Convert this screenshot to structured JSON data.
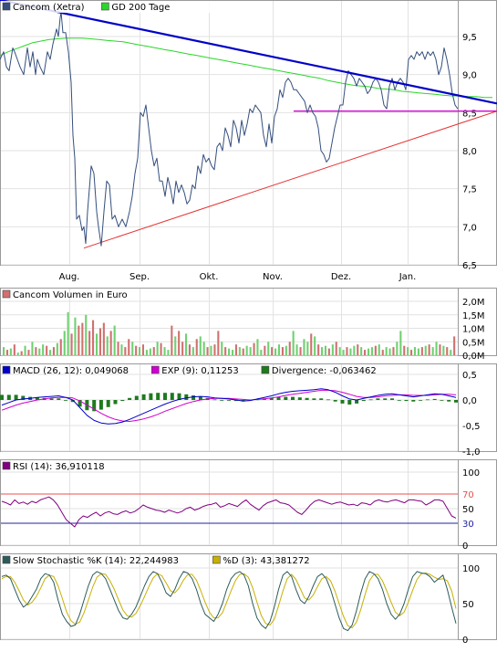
{
  "colors": {
    "price": "#344e7d",
    "gd200": "#2ad62a",
    "trend_down": "#0000c8",
    "trend_up": "#e83030",
    "support": "#d000d0",
    "vol_up": "#70d070",
    "vol_down": "#d07070",
    "macd": "#0000c8",
    "exp": "#d000d0",
    "divergence": "#1e7a1e",
    "rsi": "#800080",
    "rsi_70": "#e85050",
    "rsi_30": "#2020a0",
    "stoch_k": "#2d5b5b",
    "stoch_d": "#c8b000"
  },
  "months": [
    "Aug.",
    "Sep.",
    "Okt.",
    "Nov.",
    "Dez.",
    "Jan."
  ],
  "chart_data": [
    {
      "type": "line",
      "legend": [
        {
          "label": "Cancom (Xetra)",
          "color": "#344e7d"
        },
        {
          "label": "GD 200 Tage",
          "color": "#2ad62a"
        }
      ],
      "yticks": [
        "9,5",
        "9,0",
        "8,5",
        "8,0",
        "7,5",
        "7,0",
        "6,5"
      ],
      "ylim": [
        6.5,
        9.9
      ],
      "price_x": [
        0,
        4,
        7,
        10,
        14,
        16,
        19,
        22,
        26,
        30,
        33,
        36,
        39,
        41,
        44,
        48,
        52,
        55,
        58,
        62,
        64,
        66,
        67,
        69,
        72,
        75,
        78,
        80,
        82,
        84,
        87,
        90,
        92,
        94,
        96,
        98,
        100,
        103,
        106,
        108,
        111,
        114,
        117,
        120,
        123,
        126,
        130,
        134,
        138,
        142,
        145,
        148,
        151,
        154,
        157,
        160,
        163,
        166,
        169,
        172,
        175,
        178,
        181,
        184,
        187,
        190,
        193,
        196,
        199,
        202,
        205,
        208,
        211,
        214,
        217,
        220,
        223,
        226,
        229,
        232,
        235,
        238,
        241,
        244,
        247,
        250,
        253,
        256,
        259,
        262,
        265,
        268,
        271,
        274,
        277,
        280,
        283,
        286,
        289,
        292,
        295,
        298,
        301,
        304,
        307,
        310,
        313,
        316,
        319,
        322,
        325,
        328,
        331,
        334,
        337,
        340,
        343,
        346,
        349,
        352,
        355,
        358,
        361,
        364,
        367,
        370,
        373,
        376,
        379,
        382,
        385,
        388,
        391,
        394,
        397,
        400,
        403,
        406,
        409,
        412,
        415,
        418,
        421,
        424,
        427,
        430,
        433,
        436,
        439,
        442,
        445,
        448,
        451,
        454,
        457,
        460,
        463,
        466,
        469,
        472,
        475,
        478,
        481,
        484,
        487,
        490,
        493,
        496,
        499,
        502
      ],
      "price_y": [
        9.2,
        9.3,
        9.1,
        9.05,
        9.35,
        9.3,
        9.2,
        9.1,
        9.0,
        9.35,
        9.1,
        9.3,
        9.0,
        9.2,
        9.1,
        9.0,
        9.3,
        9.2,
        9.4,
        9.6,
        9.5,
        9.75,
        9.82,
        9.55,
        9.55,
        9.3,
        8.9,
        8.2,
        7.9,
        7.1,
        7.15,
        6.95,
        7.0,
        6.78,
        7.2,
        7.5,
        7.8,
        7.7,
        7.2,
        7.0,
        6.75,
        7.2,
        7.6,
        7.55,
        7.1,
        7.15,
        7.0,
        7.1,
        7.0,
        7.2,
        7.4,
        7.7,
        7.9,
        8.5,
        8.45,
        8.6,
        8.3,
        8.0,
        7.8,
        7.9,
        7.6,
        7.6,
        7.4,
        7.65,
        7.5,
        7.3,
        7.6,
        7.45,
        7.55,
        7.45,
        7.3,
        7.35,
        7.55,
        7.5,
        7.8,
        7.7,
        7.95,
        7.85,
        7.9,
        7.8,
        7.75,
        8.05,
        8.1,
        8.0,
        8.3,
        8.2,
        8.05,
        8.4,
        8.3,
        8.1,
        8.4,
        8.2,
        8.35,
        8.55,
        8.5,
        8.6,
        8.55,
        8.5,
        8.2,
        8.05,
        8.35,
        8.1,
        8.45,
        8.55,
        8.8,
        8.7,
        8.9,
        8.95,
        8.9,
        8.8,
        8.8,
        8.75,
        8.7,
        8.65,
        8.5,
        8.6,
        8.5,
        8.45,
        8.3,
        8.0,
        7.95,
        7.85,
        7.9,
        8.1,
        8.3,
        8.45,
        8.6,
        8.6,
        8.9,
        9.05,
        9.0,
        8.95,
        8.85,
        8.95,
        8.9,
        8.85,
        8.75,
        8.8,
        8.9,
        8.95,
        8.9,
        8.8,
        8.6,
        8.55,
        8.85,
        8.95,
        8.8,
        8.9,
        8.95,
        8.9,
        8.8,
        9.2,
        9.25,
        9.2,
        9.3,
        9.25,
        9.3,
        9.2,
        9.3,
        9.25,
        9.3,
        9.2,
        9.0,
        9.1,
        9.35,
        9.2,
        9.0,
        8.75,
        8.6,
        8.55
      ],
      "gd200_y": [
        9.25,
        9.3,
        9.34,
        9.38,
        9.42,
        9.44,
        9.46,
        9.47,
        9.48,
        9.48,
        9.48,
        9.47,
        9.46,
        9.45,
        9.44,
        9.43,
        9.41,
        9.39,
        9.37,
        9.35,
        9.33,
        9.31,
        9.29,
        9.27,
        9.25,
        9.23,
        9.21,
        9.19,
        9.17,
        9.15,
        9.13,
        9.11,
        9.09,
        9.07,
        9.05,
        9.03,
        9.01,
        8.99,
        8.97,
        8.95,
        8.92,
        8.9,
        8.88,
        8.86,
        8.85,
        8.84,
        8.82,
        8.81,
        8.8,
        8.78,
        8.77,
        8.76,
        8.75,
        8.74,
        8.73,
        8.72,
        8.72,
        8.71,
        8.71,
        8.7,
        8.7
      ],
      "gd200_x": [
        0,
        9,
        18,
        27,
        36,
        45,
        54,
        63,
        72,
        81,
        90,
        99,
        108,
        117,
        126,
        135,
        144,
        153,
        162,
        171,
        180,
        189,
        198,
        207,
        216,
        225,
        234,
        243,
        252,
        261,
        270,
        279,
        288,
        297,
        306,
        315,
        324,
        333,
        342,
        351,
        360,
        369,
        378,
        387,
        396,
        405,
        414,
        423,
        432,
        441,
        450,
        459,
        468,
        477,
        486,
        495,
        504,
        513,
        522,
        531,
        540
      ],
      "trend_down": {
        "from": [
          0,
          9.98
        ],
        "to": [
          545,
          8.62
        ]
      },
      "trend_up": {
        "from": [
          92,
          6.72
        ],
        "to": [
          545,
          8.52
        ]
      },
      "support": {
        "from": [
          322,
          8.52
        ],
        "to": [
          545,
          8.52
        ]
      }
    },
    {
      "type": "bar",
      "legend": [
        {
          "label": "Cancom Volumen in Euro",
          "color": "#d07070"
        }
      ],
      "yticks": [
        "2,0M",
        "1,5M",
        "1,0M",
        "0,5M",
        "0,0M"
      ],
      "ylim": [
        0,
        2.0
      ],
      "values": [
        0.3,
        0.2,
        0.25,
        0.4,
        0.1,
        0.15,
        0.35,
        0.2,
        0.5,
        0.3,
        0.25,
        0.4,
        0.35,
        0.2,
        0.3,
        0.45,
        0.6,
        0.9,
        1.6,
        0.8,
        1.4,
        1.1,
        1.2,
        1.5,
        0.9,
        1.3,
        0.8,
        1.0,
        1.2,
        0.7,
        0.9,
        1.1,
        0.5,
        0.4,
        0.3,
        0.6,
        0.5,
        0.35,
        0.3,
        0.4,
        0.2,
        0.25,
        0.3,
        0.5,
        0.45,
        0.3,
        0.2,
        1.1,
        0.7,
        0.9,
        0.5,
        0.8,
        0.4,
        0.3,
        0.6,
        0.7,
        0.5,
        0.3,
        0.35,
        0.4,
        0.9,
        0.5,
        0.3,
        0.25,
        0.2,
        0.4,
        0.3,
        0.25,
        0.35,
        0.3,
        0.45,
        0.6,
        0.2,
        0.35,
        0.5,
        0.3,
        0.25,
        0.4,
        0.3,
        0.35,
        0.5,
        0.9,
        0.4,
        0.3,
        0.6,
        0.5,
        0.8,
        0.7,
        0.4,
        0.3,
        0.35,
        0.25,
        0.4,
        0.5,
        0.3,
        0.2,
        0.3,
        0.25,
        0.35,
        0.4,
        0.3,
        0.2,
        0.25,
        0.3,
        0.35,
        0.4,
        0.2,
        0.3,
        0.25,
        0.3,
        0.5,
        0.9,
        0.35,
        0.3,
        0.2,
        0.3,
        0.25,
        0.3,
        0.35,
        0.4,
        0.3,
        0.5,
        0.4,
        0.35,
        0.3,
        0.2,
        0.7
      ],
      "up": [
        1,
        0,
        1,
        0,
        1,
        0,
        1,
        0,
        1,
        0,
        1,
        1,
        0,
        1,
        0,
        1,
        0,
        1,
        1,
        0,
        1,
        0,
        0,
        1,
        0,
        0,
        1,
        0,
        0,
        1,
        0,
        1,
        0,
        1,
        0,
        0,
        1,
        0,
        1,
        0,
        1,
        1,
        0,
        1,
        0,
        1,
        1,
        0,
        1,
        0,
        0,
        1,
        0,
        1,
        0,
        1,
        1,
        0,
        1,
        0,
        0,
        1,
        0,
        1,
        1,
        0,
        1,
        0,
        1,
        1,
        0,
        1,
        1,
        0,
        1,
        0,
        1,
        1,
        0,
        1,
        0,
        1,
        1,
        0,
        1,
        1,
        0,
        1,
        0,
        1,
        1,
        0,
        1,
        0,
        1,
        1,
        0,
        1,
        1,
        0,
        1,
        0,
        1,
        1,
        0,
        1,
        0,
        1,
        1,
        0,
        1,
        1,
        0,
        1,
        0,
        1,
        1,
        0,
        1,
        0,
        1,
        1,
        0,
        1,
        0,
        1,
        0
      ]
    },
    {
      "type": "line",
      "legend": [
        {
          "label": "MACD (26, 12): 0,049068",
          "color": "#0000c8"
        },
        {
          "label": "EXP (9): 0,11253",
          "color": "#d000d0"
        },
        {
          "label": "Divergence: -0,063462",
          "color": "#1e7a1e"
        }
      ],
      "yticks": [
        "0,5",
        "0,0",
        "-0,5",
        "-1,0"
      ],
      "ylim": [
        -1.0,
        0.5
      ],
      "macd": [
        -0.1,
        -0.05,
        0.0,
        0.02,
        0.03,
        0.05,
        0.06,
        0.07,
        0.08,
        0.05,
        0.0,
        -0.15,
        -0.3,
        -0.4,
        -0.45,
        -0.47,
        -0.46,
        -0.43,
        -0.38,
        -0.32,
        -0.26,
        -0.2,
        -0.14,
        -0.08,
        -0.03,
        0.01,
        0.04,
        0.06,
        0.07,
        0.06,
        0.04,
        0.03,
        0.02,
        0.0,
        -0.02,
        -0.01,
        0.02,
        0.05,
        0.08,
        0.12,
        0.15,
        0.17,
        0.18,
        0.19,
        0.2,
        0.22,
        0.2,
        0.15,
        0.08,
        0.02,
        0.0,
        0.03,
        0.06,
        0.09,
        0.11,
        0.12,
        0.1,
        0.08,
        0.06,
        0.08,
        0.1,
        0.12,
        0.11,
        0.08,
        0.05
      ],
      "exp": [
        -0.2,
        -0.15,
        -0.1,
        -0.06,
        -0.03,
        0.0,
        0.02,
        0.04,
        0.05,
        0.05,
        0.04,
        -0.02,
        -0.1,
        -0.18,
        -0.26,
        -0.33,
        -0.38,
        -0.41,
        -0.42,
        -0.4,
        -0.37,
        -0.33,
        -0.28,
        -0.22,
        -0.17,
        -0.12,
        -0.07,
        -0.03,
        0.0,
        0.02,
        0.03,
        0.03,
        0.03,
        0.02,
        0.01,
        0.0,
        0.01,
        0.02,
        0.04,
        0.06,
        0.09,
        0.11,
        0.13,
        0.15,
        0.17,
        0.19,
        0.19,
        0.18,
        0.15,
        0.11,
        0.07,
        0.05,
        0.05,
        0.06,
        0.08,
        0.09,
        0.1,
        0.1,
        0.09,
        0.09,
        0.09,
        0.1,
        0.11,
        0.11,
        0.1
      ],
      "divergence": [
        0.1,
        0.1,
        0.1,
        0.08,
        0.06,
        0.05,
        0.04,
        0.03,
        0.03,
        0.0,
        -0.04,
        -0.13,
        -0.2,
        -0.22,
        -0.19,
        -0.14,
        -0.08,
        -0.02,
        0.04,
        0.08,
        0.11,
        0.13,
        0.14,
        0.14,
        0.14,
        0.13,
        0.11,
        0.09,
        0.07,
        0.04,
        0.01,
        0.0,
        -0.01,
        -0.02,
        -0.03,
        -0.01,
        0.01,
        0.03,
        0.04,
        0.06,
        0.06,
        0.06,
        0.05,
        0.04,
        0.03,
        0.03,
        0.01,
        -0.03,
        -0.07,
        -0.09,
        -0.07,
        -0.02,
        0.01,
        0.03,
        0.03,
        0.03,
        0.0,
        -0.02,
        -0.03,
        -0.01,
        0.01,
        0.02,
        0.0,
        -0.03,
        -0.05
      ]
    },
    {
      "type": "line",
      "legend": [
        {
          "label": "RSI (14): 36,910118",
          "color": "#800080"
        }
      ],
      "yticks": [
        "100",
        "70",
        "50",
        "30",
        "0"
      ],
      "ylim": [
        0,
        100
      ],
      "levels": [
        70,
        30
      ],
      "values": [
        60,
        58,
        55,
        62,
        57,
        59,
        56,
        60,
        58,
        62,
        64,
        66,
        62,
        55,
        45,
        35,
        30,
        25,
        35,
        40,
        38,
        42,
        45,
        40,
        44,
        46,
        43,
        42,
        45,
        47,
        44,
        46,
        50,
        55,
        52,
        50,
        48,
        47,
        45,
        48,
        46,
        44,
        46,
        50,
        52,
        48,
        50,
        53,
        55,
        56,
        58,
        52,
        54,
        57,
        55,
        53,
        58,
        62,
        56,
        52,
        48,
        54,
        58,
        60,
        62,
        58,
        57,
        55,
        50,
        45,
        42,
        48,
        55,
        60,
        62,
        60,
        58,
        56,
        58,
        59,
        57,
        55,
        56,
        54,
        58,
        57,
        55,
        60,
        62,
        60,
        59,
        61,
        62,
        60,
        58,
        62,
        62,
        61,
        60,
        55,
        58,
        62,
        62,
        60,
        50,
        40,
        37
      ]
    },
    {
      "type": "line",
      "legend": [
        {
          "label": "Slow Stochastic %K (14): 22,244983",
          "color": "#2d5b5b"
        },
        {
          "label": "%D (3): 43,381272",
          "color": "#c8b000"
        }
      ],
      "yticks": [
        "100",
        "50",
        "0"
      ],
      "ylim": [
        0,
        100
      ],
      "k": [
        88,
        90,
        85,
        70,
        55,
        45,
        50,
        60,
        70,
        85,
        92,
        90,
        80,
        55,
        35,
        25,
        18,
        20,
        35,
        55,
        75,
        90,
        95,
        92,
        85,
        70,
        55,
        40,
        30,
        28,
        35,
        45,
        60,
        75,
        88,
        95,
        92,
        80,
        65,
        60,
        70,
        85,
        95,
        93,
        85,
        70,
        50,
        35,
        30,
        25,
        35,
        50,
        70,
        85,
        92,
        95,
        90,
        75,
        50,
        30,
        20,
        15,
        25,
        45,
        70,
        90,
        95,
        88,
        70,
        55,
        50,
        60,
        75,
        88,
        92,
        85,
        70,
        50,
        30,
        15,
        12,
        20,
        40,
        65,
        85,
        95,
        92,
        85,
        70,
        50,
        35,
        28,
        35,
        50,
        70,
        88,
        95,
        93,
        92,
        88,
        80,
        85,
        90,
        70,
        45,
        22
      ],
      "d": [
        85,
        88,
        88,
        80,
        68,
        55,
        48,
        52,
        60,
        72,
        85,
        90,
        88,
        75,
        57,
        38,
        26,
        21,
        24,
        37,
        55,
        73,
        87,
        92,
        91,
        82,
        70,
        55,
        41,
        33,
        31,
        36,
        47,
        60,
        74,
        86,
        92,
        89,
        79,
        68,
        65,
        72,
        83,
        91,
        91,
        83,
        68,
        52,
        38,
        30,
        30,
        37,
        52,
        68,
        82,
        91,
        92,
        87,
        72,
        52,
        33,
        22,
        20,
        28,
        47,
        68,
        85,
        91,
        84,
        71,
        58,
        55,
        62,
        74,
        85,
        88,
        82,
        68,
        50,
        32,
        19,
        16,
        24,
        42,
        63,
        82,
        91,
        91,
        82,
        68,
        52,
        38,
        33,
        38,
        52,
        69,
        84,
        92,
        93,
        91,
        87,
        84,
        85,
        82,
        68,
        43
      ]
    }
  ]
}
